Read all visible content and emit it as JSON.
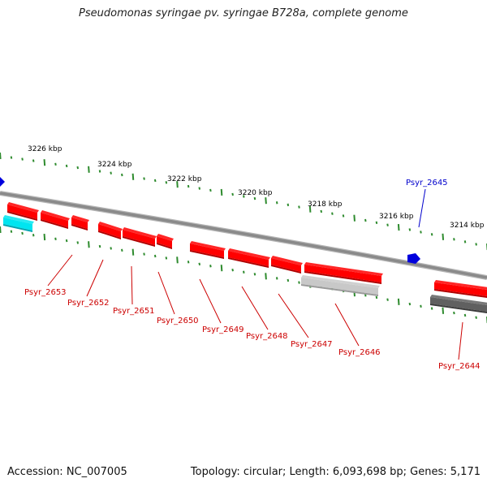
{
  "title": "Pseudomonas syringae pv. syringae B728a, complete genome",
  "footer": {
    "accession": "Accession: NC_007005",
    "summary": "Topology: circular; Length: 6,093,698 bp; Genes: 5,171"
  },
  "colors": {
    "forward_gene": "#ff0000",
    "rna_gene": "#00e5f0",
    "other_gene_light": "#c8c8c8",
    "other_gene_dark": "#606060",
    "marker": "#0000dd",
    "backbone": "#8a8a8a",
    "ticks": "#2e8b2e"
  },
  "scale_labels": [
    "3226 kbp",
    "3224 kbp",
    "3222 kbp",
    "3220 kbp",
    "3218 kbp",
    "3216 kbp",
    "3214 kbp"
  ],
  "genes": [
    {
      "label": "Psyr_2653",
      "color": "red"
    },
    {
      "label": "Psyr_2652",
      "color": "red"
    },
    {
      "label": "Psyr_2651",
      "color": "red"
    },
    {
      "label": "Psyr_2650",
      "color": "red"
    },
    {
      "label": "Psyr_2649",
      "color": "red"
    },
    {
      "label": "Psyr_2648",
      "color": "red"
    },
    {
      "label": "Psyr_2647",
      "color": "red"
    },
    {
      "label": "Psyr_2646",
      "color": "red"
    },
    {
      "label": "Psyr_2645",
      "color": "blue"
    },
    {
      "label": "Psyr_2644",
      "color": "red"
    }
  ]
}
